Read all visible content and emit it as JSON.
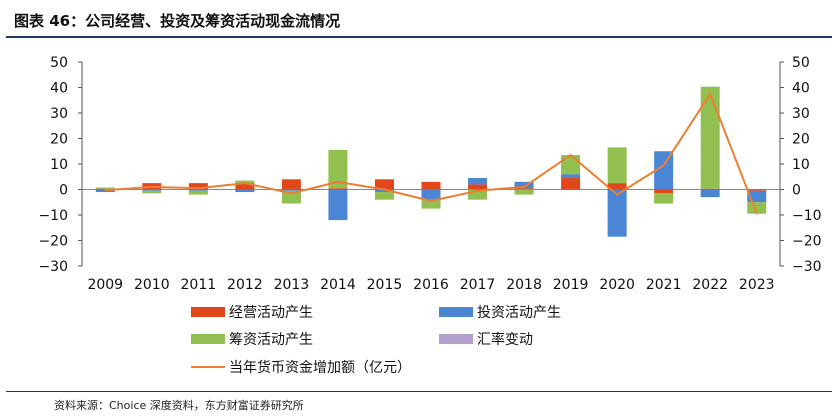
{
  "title": "图表 46：公司经营、投资及筹资活动现金流情况",
  "source": "资料来源：Choice 深度资料，东方财富证券研究所",
  "chart_data": {
    "type": "bar",
    "stacked": true,
    "categories": [
      "2009",
      "2010",
      "2011",
      "2012",
      "2013",
      "2014",
      "2015",
      "2016",
      "2017",
      "2018",
      "2019",
      "2020",
      "2021",
      "2022",
      "2023"
    ],
    "ylim": [
      -30,
      50
    ],
    "yticks": [
      "50",
      "40",
      "30",
      "20",
      "10",
      "0",
      "−10",
      "−20",
      "−30"
    ],
    "y2ticks": [
      "50",
      "40",
      "30",
      "20",
      "10",
      "0",
      "−10",
      "−20",
      "−30"
    ],
    "series": [
      {
        "name": "经营活动产生",
        "color": "#e0481c",
        "values": [
          0.3,
          2.5,
          2.5,
          2.5,
          4,
          0.5,
          4,
          3,
          2,
          0.5,
          4.5,
          2.5,
          -1.5,
          0.3,
          -0.5
        ]
      },
      {
        "name": "投资活动产生",
        "color": "#4a86d4",
        "values": [
          -1,
          -0.5,
          -0.5,
          -1,
          -0.5,
          -12,
          -1,
          -4,
          2.5,
          2.5,
          1.5,
          -18.5,
          15,
          -3,
          -4.5
        ]
      },
      {
        "name": "筹资活动产生",
        "color": "#92c050",
        "values": [
          0.5,
          -1,
          -1.5,
          1,
          -5,
          15,
          -3,
          -3.5,
          -4,
          -2,
          7.5,
          14,
          -4,
          40,
          -4.5
        ]
      },
      {
        "name": "汇率变动",
        "color": "#b4a0cc",
        "values": [
          0,
          0,
          0,
          0,
          0,
          0,
          0,
          0,
          0,
          0,
          0,
          0,
          0,
          0,
          0
        ]
      }
    ],
    "line": {
      "name": "当年货币资金增加额（亿元）",
      "color": "#ed7d31",
      "values": [
        -0.3,
        1,
        0.5,
        2.5,
        -1.5,
        3,
        0,
        -4.5,
        -0.5,
        1,
        13.5,
        -2,
        9.5,
        37.5,
        -9.5
      ]
    },
    "legend": "bottom"
  }
}
